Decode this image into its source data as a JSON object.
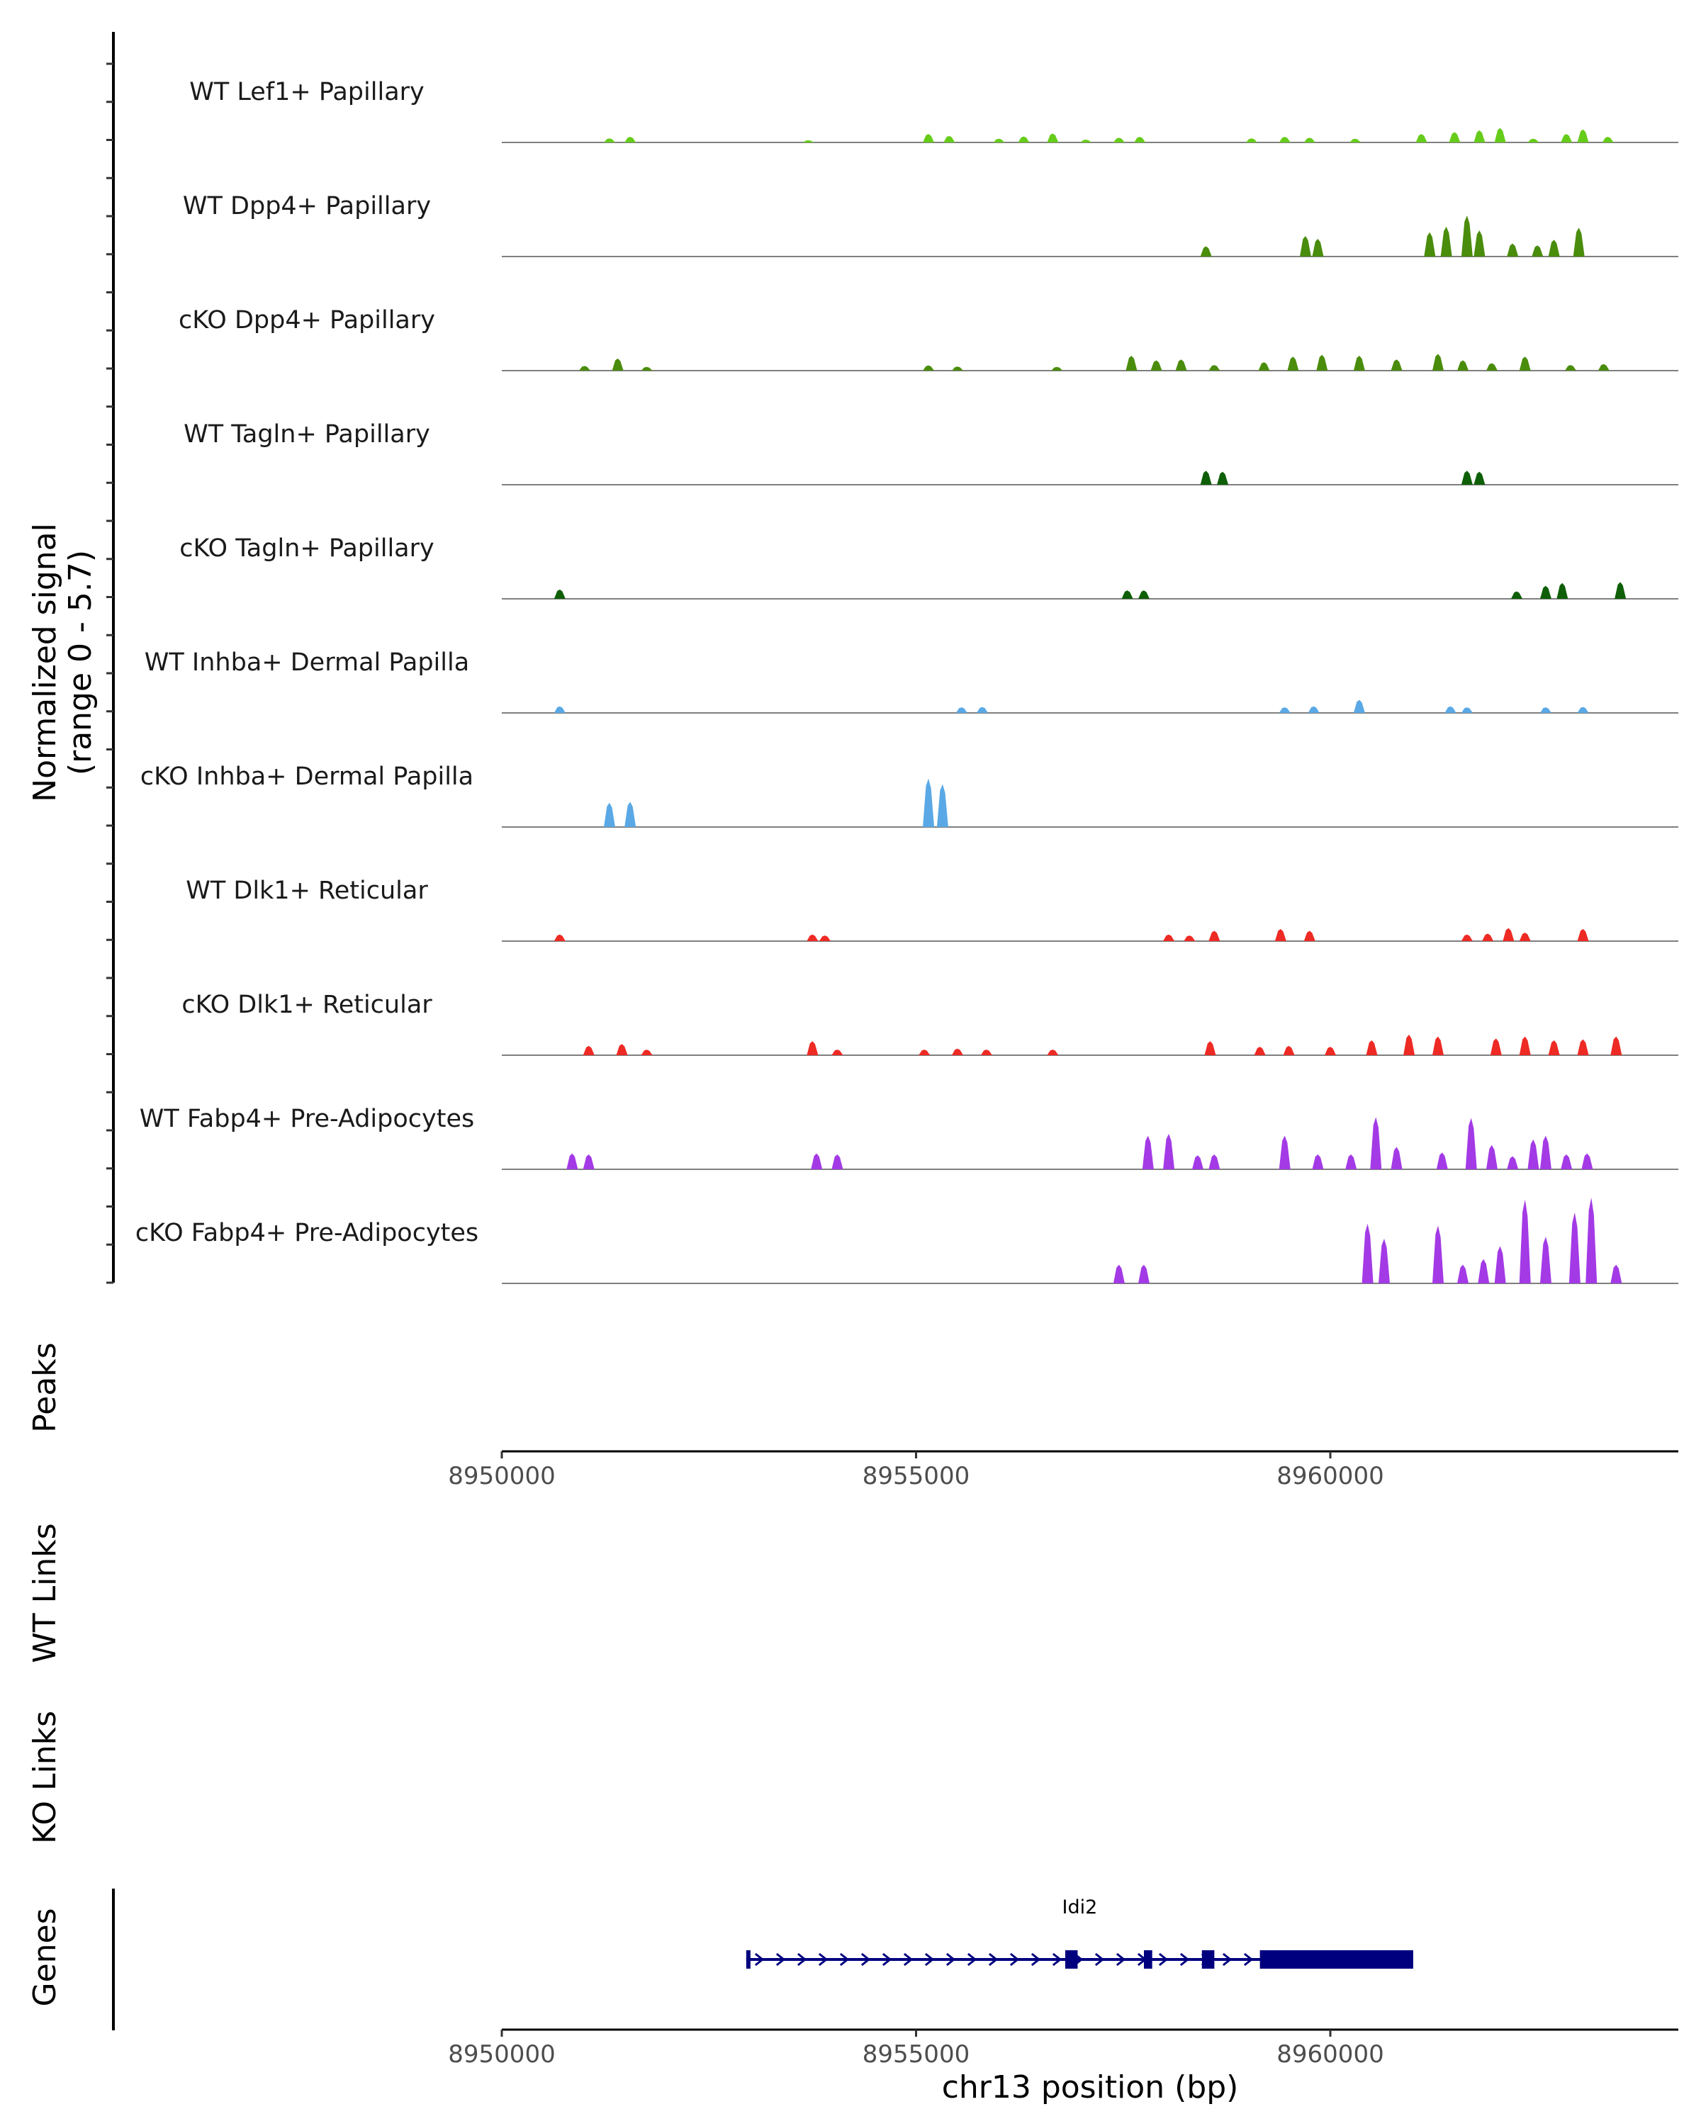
{
  "chart_data": {
    "type": "area",
    "title": "",
    "ylabel_line1": "Normalized signal",
    "ylabel_line2": "(range 0 - 5.7)",
    "xlabel": "chr13 position (bp)",
    "xlim": [
      8950000,
      8964200
    ],
    "ylim": [
      0,
      5.7
    ],
    "x_ticks": [
      "8950000",
      "8955000",
      "8960000"
    ],
    "x_tick_values": [
      8950000,
      8955000,
      8960000
    ],
    "series": [
      {
        "name": "WT Lef1+ Papillary",
        "color": "#66cc1a",
        "peaks": [
          [
            8951300,
            0.22
          ],
          [
            8951550,
            0.3
          ],
          [
            8953700,
            0.12
          ],
          [
            8955150,
            0.45
          ],
          [
            8955400,
            0.35
          ],
          [
            8956000,
            0.2
          ],
          [
            8956300,
            0.32
          ],
          [
            8956650,
            0.48
          ],
          [
            8957050,
            0.15
          ],
          [
            8957450,
            0.25
          ],
          [
            8957700,
            0.3
          ],
          [
            8959050,
            0.22
          ],
          [
            8959450,
            0.3
          ],
          [
            8959750,
            0.25
          ],
          [
            8960300,
            0.2
          ],
          [
            8961100,
            0.45
          ],
          [
            8961500,
            0.55
          ],
          [
            8961800,
            0.65
          ],
          [
            8962050,
            0.78
          ],
          [
            8962450,
            0.2
          ],
          [
            8962850,
            0.45
          ],
          [
            8963050,
            0.7
          ],
          [
            8963350,
            0.3
          ]
        ]
      },
      {
        "name": "WT Dpp4+ Papillary",
        "color": "#4a8c0c",
        "peaks": [
          [
            8958500,
            0.55
          ],
          [
            8959700,
            1.1
          ],
          [
            8959850,
            0.95
          ],
          [
            8961200,
            1.3
          ],
          [
            8961400,
            1.6
          ],
          [
            8961650,
            2.2
          ],
          [
            8961800,
            1.4
          ],
          [
            8962200,
            0.7
          ],
          [
            8962500,
            0.6
          ],
          [
            8962700,
            0.9
          ],
          [
            8963000,
            1.55
          ]
        ]
      },
      {
        "name": "cKO Dpp4+ Papillary",
        "color": "#4a8c0c",
        "peaks": [
          [
            8951000,
            0.25
          ],
          [
            8951400,
            0.65
          ],
          [
            8951750,
            0.2
          ],
          [
            8955150,
            0.28
          ],
          [
            8955500,
            0.22
          ],
          [
            8956700,
            0.2
          ],
          [
            8957600,
            0.8
          ],
          [
            8957900,
            0.55
          ],
          [
            8958200,
            0.6
          ],
          [
            8958600,
            0.3
          ],
          [
            8959200,
            0.45
          ],
          [
            8959550,
            0.75
          ],
          [
            8959900,
            0.85
          ],
          [
            8960350,
            0.8
          ],
          [
            8960800,
            0.6
          ],
          [
            8961300,
            0.9
          ],
          [
            8961600,
            0.55
          ],
          [
            8961950,
            0.4
          ],
          [
            8962350,
            0.75
          ],
          [
            8962900,
            0.3
          ],
          [
            8963300,
            0.35
          ]
        ]
      },
      {
        "name": "WT Tagln+ Papillary",
        "color": "#0e5f08",
        "peaks": [
          [
            8958500,
            0.75
          ],
          [
            8958700,
            0.7
          ],
          [
            8961650,
            0.75
          ],
          [
            8961800,
            0.7
          ]
        ]
      },
      {
        "name": "cKO Tagln+ Papillary",
        "color": "#0e5f08",
        "peaks": [
          [
            8950700,
            0.5
          ],
          [
            8957550,
            0.45
          ],
          [
            8957750,
            0.45
          ],
          [
            8962250,
            0.4
          ],
          [
            8962600,
            0.7
          ],
          [
            8962800,
            0.85
          ],
          [
            8963500,
            0.9
          ]
        ]
      },
      {
        "name": "WT Inhba+ Dermal Papilla",
        "color": "#5aa9e6",
        "peaks": [
          [
            8950700,
            0.35
          ],
          [
            8955550,
            0.3
          ],
          [
            8955800,
            0.32
          ],
          [
            8959450,
            0.3
          ],
          [
            8959800,
            0.35
          ],
          [
            8960350,
            0.7
          ],
          [
            8961450,
            0.35
          ],
          [
            8961650,
            0.3
          ],
          [
            8962600,
            0.3
          ],
          [
            8963050,
            0.32
          ]
        ]
      },
      {
        "name": "cKO Inhba+ Dermal Papilla",
        "color": "#5aa9e6",
        "peaks": [
          [
            8951300,
            1.3
          ],
          [
            8951550,
            1.35
          ],
          [
            8955150,
            2.6
          ],
          [
            8955320,
            2.3
          ]
        ]
      },
      {
        "name": "WT Dlk1+ Reticular",
        "color": "#ee2a24",
        "peaks": [
          [
            8950700,
            0.35
          ],
          [
            8953750,
            0.35
          ],
          [
            8953900,
            0.3
          ],
          [
            8958050,
            0.35
          ],
          [
            8958300,
            0.3
          ],
          [
            8958600,
            0.55
          ],
          [
            8959400,
            0.65
          ],
          [
            8959750,
            0.55
          ],
          [
            8961650,
            0.35
          ],
          [
            8961900,
            0.4
          ],
          [
            8962150,
            0.7
          ],
          [
            8962350,
            0.45
          ],
          [
            8963050,
            0.65
          ]
        ]
      },
      {
        "name": "cKO Dlk1+ Reticular",
        "color": "#ee2a24",
        "peaks": [
          [
            8951050,
            0.5
          ],
          [
            8951450,
            0.6
          ],
          [
            8951750,
            0.3
          ],
          [
            8953750,
            0.75
          ],
          [
            8954050,
            0.3
          ],
          [
            8955100,
            0.3
          ],
          [
            8955500,
            0.35
          ],
          [
            8955850,
            0.3
          ],
          [
            8956650,
            0.3
          ],
          [
            8958550,
            0.75
          ],
          [
            8959150,
            0.45
          ],
          [
            8959500,
            0.5
          ],
          [
            8960000,
            0.45
          ],
          [
            8960500,
            0.8
          ],
          [
            8960950,
            1.1
          ],
          [
            8961300,
            1.0
          ],
          [
            8962000,
            0.9
          ],
          [
            8962350,
            1.0
          ],
          [
            8962700,
            0.8
          ],
          [
            8963050,
            0.85
          ],
          [
            8963450,
            1.0
          ]
        ]
      },
      {
        "name": "WT Fabp4+ Pre-Adipocytes",
        "color": "#a33ae6",
        "peaks": [
          [
            8950850,
            0.85
          ],
          [
            8951050,
            0.8
          ],
          [
            8953800,
            0.85
          ],
          [
            8954050,
            0.8
          ],
          [
            8957800,
            1.8
          ],
          [
            8958050,
            1.9
          ],
          [
            8958400,
            0.75
          ],
          [
            8958600,
            0.8
          ],
          [
            8959450,
            1.8
          ],
          [
            8959850,
            0.8
          ],
          [
            8960250,
            0.8
          ],
          [
            8960550,
            2.8
          ],
          [
            8960800,
            1.2
          ],
          [
            8961350,
            0.9
          ],
          [
            8961700,
            2.75
          ],
          [
            8961950,
            1.3
          ],
          [
            8962200,
            0.7
          ],
          [
            8962450,
            1.6
          ],
          [
            8962600,
            1.8
          ],
          [
            8962850,
            0.8
          ],
          [
            8963100,
            0.85
          ]
        ]
      },
      {
        "name": "cKO Fabp4+ Pre-Adipocytes",
        "color": "#a33ae6",
        "peaks": [
          [
            8957450,
            1.0
          ],
          [
            8957750,
            1.0
          ],
          [
            8960450,
            3.2
          ],
          [
            8960650,
            2.4
          ],
          [
            8961300,
            3.1
          ],
          [
            8961600,
            1.0
          ],
          [
            8961850,
            1.3
          ],
          [
            8962050,
            2.0
          ],
          [
            8962350,
            4.5
          ],
          [
            8962600,
            2.5
          ],
          [
            8962950,
            3.8
          ],
          [
            8963150,
            4.6
          ],
          [
            8963450,
            1.0
          ]
        ]
      }
    ],
    "peaks_track": {
      "label": "Peaks",
      "items": []
    },
    "wt_links": {
      "label": "WT Links",
      "items": []
    },
    "ko_links": {
      "label": "KO Links",
      "items": []
    },
    "genes": {
      "label": "Genes",
      "items": [
        {
          "name": "Idi2",
          "strand": "+",
          "start": 8952950,
          "end": 8961000,
          "exons": [
            [
              8952950,
              8953000
            ],
            [
              8956800,
              8956950
            ],
            [
              8957750,
              8957850
            ],
            [
              8958450,
              8958600
            ],
            [
              8959150,
              8961000
            ]
          ]
        }
      ]
    }
  }
}
